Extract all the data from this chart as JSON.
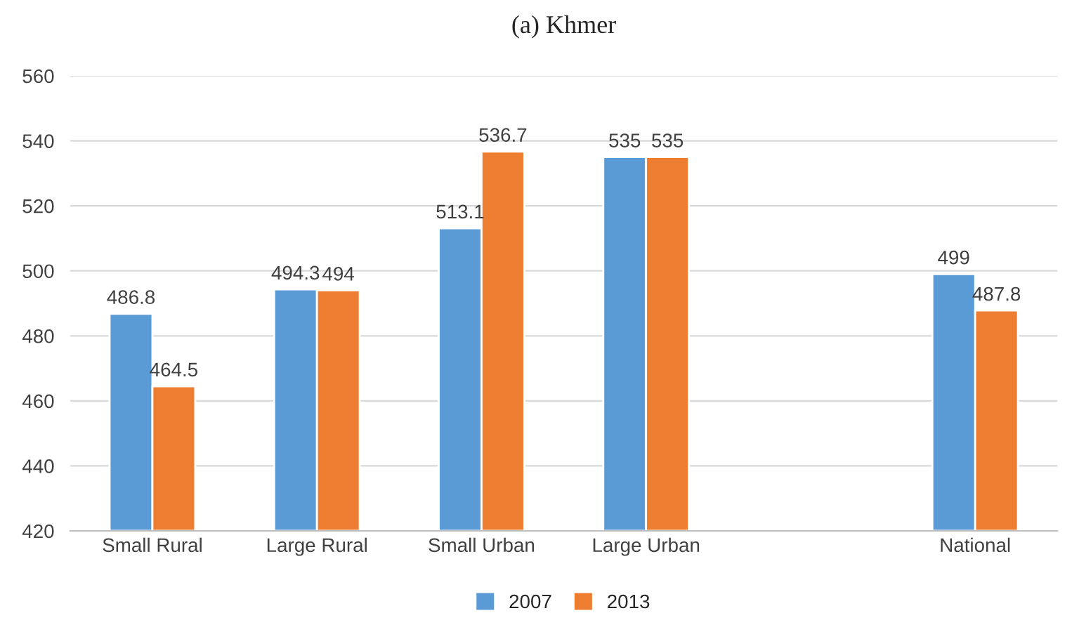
{
  "chart_data": {
    "type": "bar",
    "title": "(a) Khmer",
    "categories": [
      "Small Rural",
      "Large Rural",
      "Small Urban",
      "Large Urban",
      null,
      "National"
    ],
    "series": [
      {
        "name": "2007",
        "color": "#5b9bd5",
        "values": [
          486.8,
          494.3,
          513.1,
          535,
          null,
          499
        ]
      },
      {
        "name": "2013",
        "color": "#ed7d31",
        "values": [
          464.5,
          494,
          536.7,
          535,
          null,
          487.8
        ]
      }
    ],
    "ylim": [
      420,
      560
    ],
    "yticks": [
      420,
      440,
      460,
      480,
      500,
      520,
      540,
      560
    ],
    "grid": "y",
    "legend": "bottom",
    "data_labels": true
  }
}
